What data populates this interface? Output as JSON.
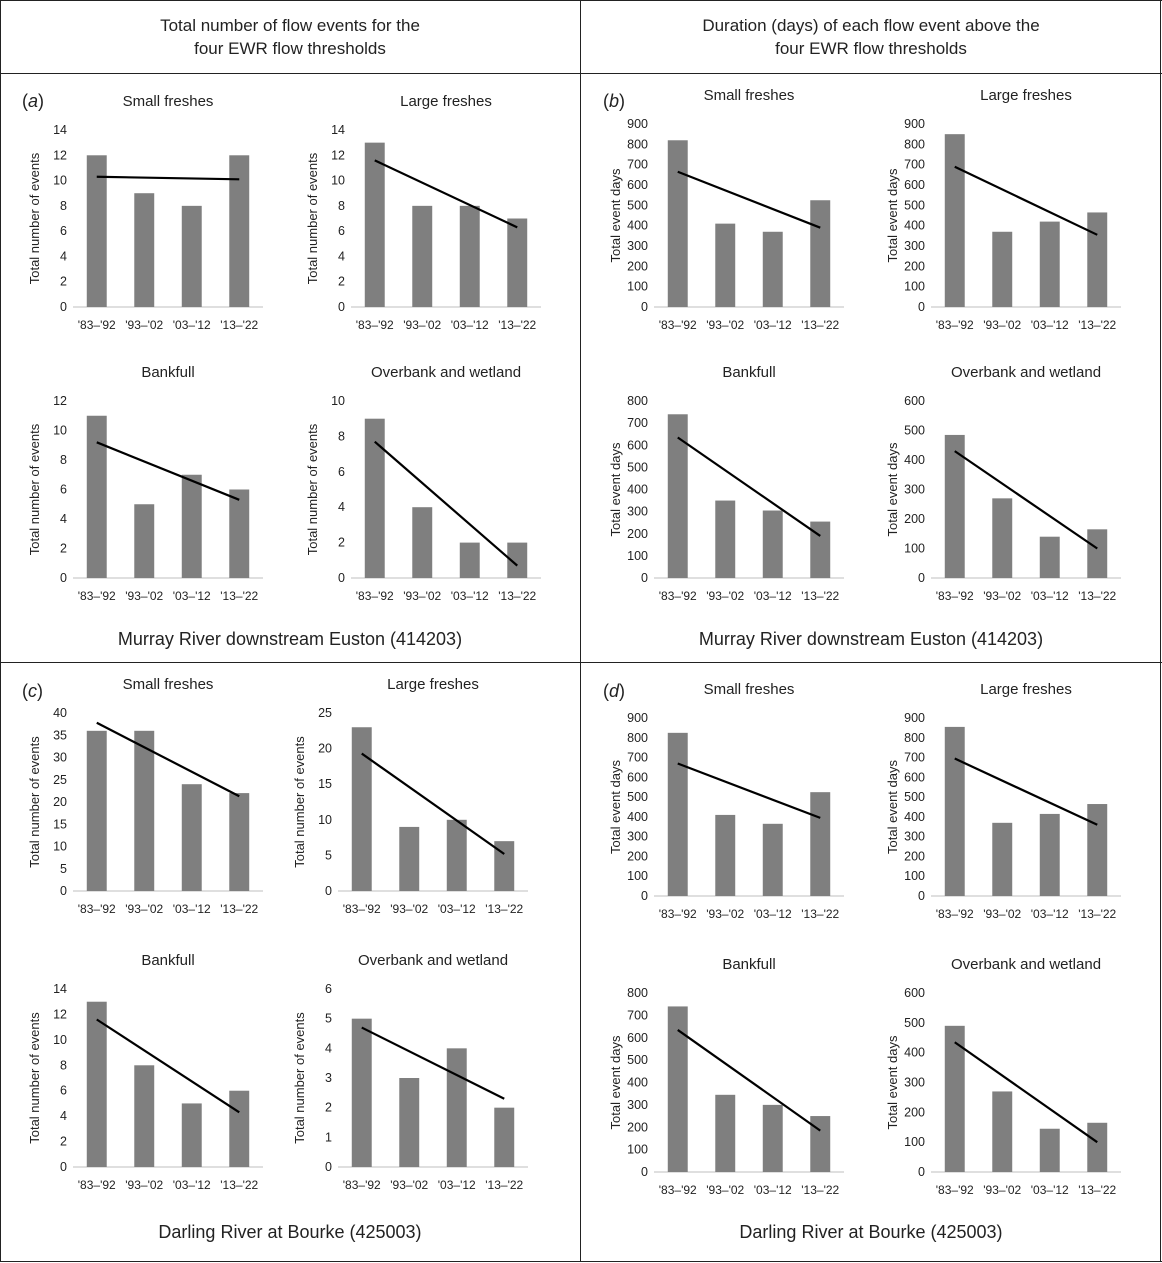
{
  "headers": {
    "left_line1": "Total number of flow events for the",
    "left_line2": "four EWR flow thresholds",
    "right_line1": "Duration (days) of each flow event above the",
    "right_line2": "four EWR flow thresholds"
  },
  "panels": {
    "a": {
      "label": "a",
      "site": "Murray River downstream Euston (414203)"
    },
    "b": {
      "label": "b",
      "site": "Murray River downstream Euston (414203)"
    },
    "c": {
      "label": "c",
      "site": "Darling River at Bourke (425003)"
    },
    "d": {
      "label": "d",
      "site": "Darling River at Bourke (425003)"
    }
  },
  "chart_data": [
    {
      "id": "a1",
      "panel": "a",
      "type": "bar",
      "title": "Small freshes",
      "ylabel": "Total number of events",
      "categories": [
        "'83–'92",
        "'93–'02",
        "'03–'12",
        "'13–'22"
      ],
      "values": [
        12,
        9,
        8,
        12
      ],
      "ylim": [
        0,
        14
      ],
      "ytick_step": 2,
      "trend": [
        10.3,
        10.1
      ]
    },
    {
      "id": "a2",
      "panel": "a",
      "type": "bar",
      "title": "Large freshes",
      "ylabel": "Total number of events",
      "categories": [
        "'83–'92",
        "'93–'02",
        "'03–'12",
        "'13–'22"
      ],
      "values": [
        13,
        8,
        8,
        7
      ],
      "ylim": [
        0,
        14
      ],
      "ytick_step": 2,
      "trend": [
        11.6,
        6.3
      ]
    },
    {
      "id": "a3",
      "panel": "a",
      "type": "bar",
      "title": "Bankfull",
      "ylabel": "Total number of events",
      "categories": [
        "'83–'92",
        "'93–'02",
        "'03–'12",
        "'13–'22"
      ],
      "values": [
        11,
        5,
        7,
        6
      ],
      "ylim": [
        0,
        12
      ],
      "ytick_step": 2,
      "trend": [
        9.2,
        5.3
      ]
    },
    {
      "id": "a4",
      "panel": "a",
      "type": "bar",
      "title": "Overbank and wetland",
      "ylabel": "Total number of events",
      "categories": [
        "'83–'92",
        "'93–'02",
        "'03–'12",
        "'13–'22"
      ],
      "values": [
        9,
        4,
        2,
        2
      ],
      "ylim": [
        0,
        10
      ],
      "ytick_step": 2,
      "trend": [
        7.7,
        0.7
      ]
    },
    {
      "id": "b1",
      "panel": "b",
      "type": "bar",
      "title": "Small freshes",
      "ylabel": "Total event days",
      "categories": [
        "'83–'92",
        "'93–'02",
        "'03–'12",
        "'13–'22"
      ],
      "values": [
        820,
        410,
        370,
        525
      ],
      "ylim": [
        0,
        900
      ],
      "ytick_step": 100,
      "trend": [
        665,
        390
      ]
    },
    {
      "id": "b2",
      "panel": "b",
      "type": "bar",
      "title": "Large freshes",
      "ylabel": "Total event days",
      "categories": [
        "'83–'92",
        "'93–'02",
        "'03–'12",
        "'13–'22"
      ],
      "values": [
        850,
        370,
        420,
        465
      ],
      "ylim": [
        0,
        900
      ],
      "ytick_step": 100,
      "trend": [
        690,
        355
      ]
    },
    {
      "id": "b3",
      "panel": "b",
      "type": "bar",
      "title": "Bankfull",
      "ylabel": "Total event days",
      "categories": [
        "'83–'92",
        "'93–'02",
        "'03–'12",
        "'13–'22"
      ],
      "values": [
        740,
        350,
        305,
        255
      ],
      "ylim": [
        0,
        800
      ],
      "ytick_step": 100,
      "trend": [
        635,
        190
      ]
    },
    {
      "id": "b4",
      "panel": "b",
      "type": "bar",
      "title": "Overbank and wetland",
      "ylabel": "Total event days",
      "categories": [
        "'83–'92",
        "'93–'02",
        "'03–'12",
        "'13–'22"
      ],
      "values": [
        485,
        270,
        140,
        165
      ],
      "ylim": [
        0,
        600
      ],
      "ytick_step": 100,
      "trend": [
        430,
        100
      ]
    },
    {
      "id": "c1",
      "panel": "c",
      "type": "bar",
      "title": "Small freshes",
      "ylabel": "Total number of events",
      "categories": [
        "'83–'92",
        "'93–'02",
        "'03–'12",
        "'13–'22"
      ],
      "values": [
        36,
        36,
        24,
        22
      ],
      "ylim": [
        0,
        40
      ],
      "ytick_step": 5,
      "trend": [
        37.8,
        21.3
      ]
    },
    {
      "id": "c2",
      "panel": "c",
      "type": "bar",
      "title": "Large freshes",
      "ylabel": "Total number of events",
      "categories": [
        "'83–'92",
        "'93–'02",
        "'03–'12",
        "'13–'22"
      ],
      "values": [
        23,
        9,
        10,
        7
      ],
      "ylim": [
        0,
        25
      ],
      "ytick_step": 5,
      "trend": [
        19.3,
        5.2
      ]
    },
    {
      "id": "c3",
      "panel": "c",
      "type": "bar",
      "title": "Bankfull",
      "ylabel": "Total number of events",
      "categories": [
        "'83–'92",
        "'93–'02",
        "'03–'12",
        "'13–'22"
      ],
      "values": [
        13,
        8,
        5,
        6
      ],
      "ylim": [
        0,
        14
      ],
      "ytick_step": 2,
      "trend": [
        11.6,
        4.3
      ]
    },
    {
      "id": "c4",
      "panel": "c",
      "type": "bar",
      "title": "Overbank and wetland",
      "ylabel": "Total number of events",
      "categories": [
        "'83–'92",
        "'93–'02",
        "'03–'12",
        "'13–'22"
      ],
      "values": [
        5,
        3,
        4,
        2
      ],
      "ylim": [
        0,
        6
      ],
      "ytick_step": 1,
      "trend": [
        4.7,
        2.3
      ]
    },
    {
      "id": "d1",
      "panel": "d",
      "type": "bar",
      "title": "Small freshes",
      "ylabel": "Total event days",
      "categories": [
        "'83–'92",
        "'93–'02",
        "'03–'12",
        "'13–'22"
      ],
      "values": [
        825,
        410,
        365,
        525
      ],
      "ylim": [
        0,
        900
      ],
      "ytick_step": 100,
      "trend": [
        670,
        395
      ]
    },
    {
      "id": "d2",
      "panel": "d",
      "type": "bar",
      "title": "Large freshes",
      "ylabel": "Total event days",
      "categories": [
        "'83–'92",
        "'93–'02",
        "'03–'12",
        "'13–'22"
      ],
      "values": [
        855,
        370,
        415,
        465
      ],
      "ylim": [
        0,
        900
      ],
      "ytick_step": 100,
      "trend": [
        695,
        360
      ]
    },
    {
      "id": "d3",
      "panel": "d",
      "type": "bar",
      "title": "Bankfull",
      "ylabel": "Total event days",
      "categories": [
        "'83–'92",
        "'93–'02",
        "'03–'12",
        "'13–'22"
      ],
      "values": [
        740,
        345,
        300,
        250
      ],
      "ylim": [
        0,
        800
      ],
      "ytick_step": 100,
      "trend": [
        635,
        185
      ]
    },
    {
      "id": "d4",
      "panel": "d",
      "type": "bar",
      "title": "Overbank and wetland",
      "ylabel": "Total event days",
      "categories": [
        "'83–'92",
        "'93–'02",
        "'03–'12",
        "'13–'22"
      ],
      "values": [
        490,
        270,
        145,
        165
      ],
      "ylim": [
        0,
        600
      ],
      "ytick_step": 100,
      "trend": [
        435,
        100
      ]
    }
  ],
  "colors": {
    "bar": "#7f7f7f",
    "trend": "#000000",
    "axis": "#bfbfbf",
    "border": "#222222"
  }
}
